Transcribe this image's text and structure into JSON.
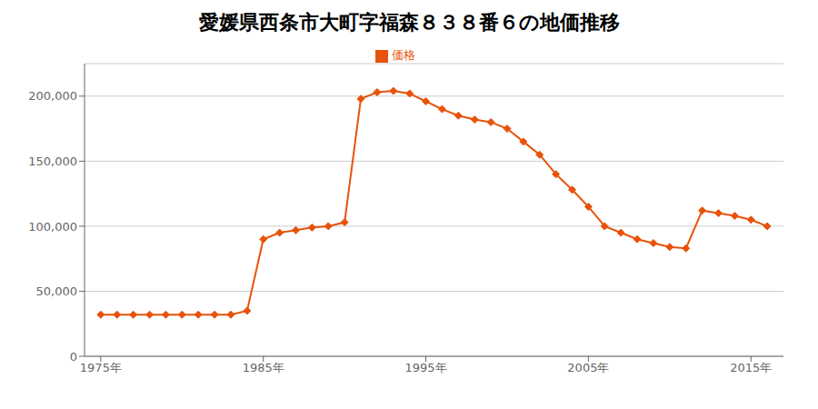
{
  "chart_data": {
    "type": "line",
    "title": "愛媛県西条市大町字福森８３８番６の地価推移",
    "x": [
      1975,
      1976,
      1977,
      1978,
      1979,
      1980,
      1981,
      1982,
      1983,
      1984,
      1985,
      1986,
      1987,
      1988,
      1989,
      1990,
      1991,
      1992,
      1993,
      1994,
      1995,
      1996,
      1997,
      1998,
      1999,
      2000,
      2001,
      2002,
      2003,
      2004,
      2005,
      2006,
      2007,
      2008,
      2009,
      2010,
      2011,
      2012,
      2013,
      2014,
      2015,
      2016
    ],
    "series": [
      {
        "name": "価格",
        "color": "#e8520a",
        "marker": "diamond",
        "values": [
          32000,
          32000,
          32000,
          32000,
          32000,
          32000,
          32000,
          32000,
          32000,
          35000,
          90000,
          95000,
          97000,
          99000,
          100000,
          103000,
          198000,
          203000,
          204000,
          202000,
          196000,
          190000,
          185000,
          182000,
          180000,
          175000,
          165000,
          155000,
          140000,
          128000,
          115000,
          100000,
          95000,
          90000,
          87000,
          84000,
          83000,
          112000,
          110000,
          108000,
          105000,
          100000
        ]
      }
    ],
    "xlim": [
      1974,
      2017
    ],
    "ylim": [
      0,
      225000
    ],
    "xticks": [
      {
        "value": 1975,
        "label": "1975年"
      },
      {
        "value": 1985,
        "label": "1985年"
      },
      {
        "value": 1995,
        "label": "1995年"
      },
      {
        "value": 2005,
        "label": "2005年"
      },
      {
        "value": 2015,
        "label": "2015年"
      }
    ],
    "yticks": [
      0,
      {
        "value": 50000,
        "label": "50,000"
      },
      {
        "value": 100000,
        "label": "100,000"
      },
      {
        "value": 150000,
        "label": "150,000"
      },
      {
        "value": 200000,
        "label": "200,000"
      }
    ],
    "grid": true,
    "legend": "top"
  }
}
